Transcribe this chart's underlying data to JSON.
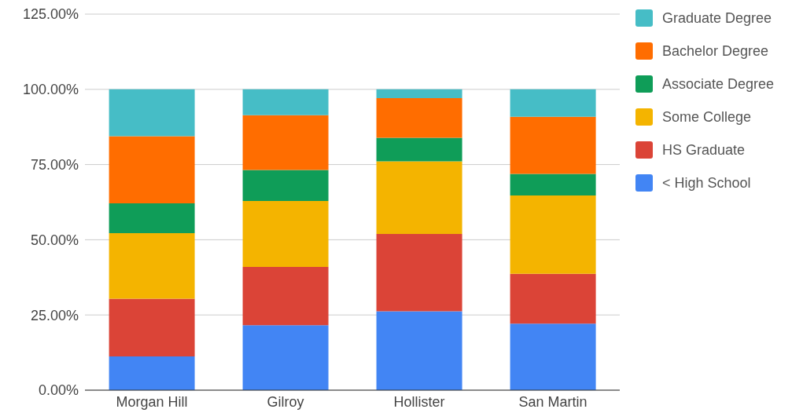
{
  "chart_data": {
    "type": "bar",
    "stacked": true,
    "categories": [
      "Morgan Hill",
      "Gilroy",
      "Hollister",
      "San Martin"
    ],
    "series": [
      {
        "name": "< High School",
        "color": "#4285f4",
        "values": [
          11.2,
          21.6,
          26.2,
          22.1
        ]
      },
      {
        "name": "HS Graduate",
        "color": "#db4437",
        "values": [
          19.2,
          19.4,
          25.7,
          16.6
        ]
      },
      {
        "name": "Some College",
        "color": "#f4b400",
        "values": [
          21.8,
          21.9,
          24.2,
          26.0
        ]
      },
      {
        "name": "Associate Degree",
        "color": "#0f9d58",
        "values": [
          9.9,
          10.3,
          7.8,
          7.2
        ]
      },
      {
        "name": "Bachelor Degree",
        "color": "#ff6d00",
        "values": [
          22.3,
          18.2,
          13.2,
          19.0
        ]
      },
      {
        "name": "Graduate Degree",
        "color": "#46bdc6",
        "values": [
          15.6,
          8.6,
          2.9,
          9.1
        ]
      }
    ],
    "ylim": [
      0,
      125
    ],
    "yticks": [
      {
        "value": 0,
        "label": "0.00%"
      },
      {
        "value": 25,
        "label": "25.00%"
      },
      {
        "value": 50,
        "label": "50.00%"
      },
      {
        "value": 75,
        "label": "75.00%"
      },
      {
        "value": 100,
        "label": "100.00%"
      },
      {
        "value": 125,
        "label": "125.00%"
      }
    ],
    "grid": "y",
    "legend": "top right"
  }
}
